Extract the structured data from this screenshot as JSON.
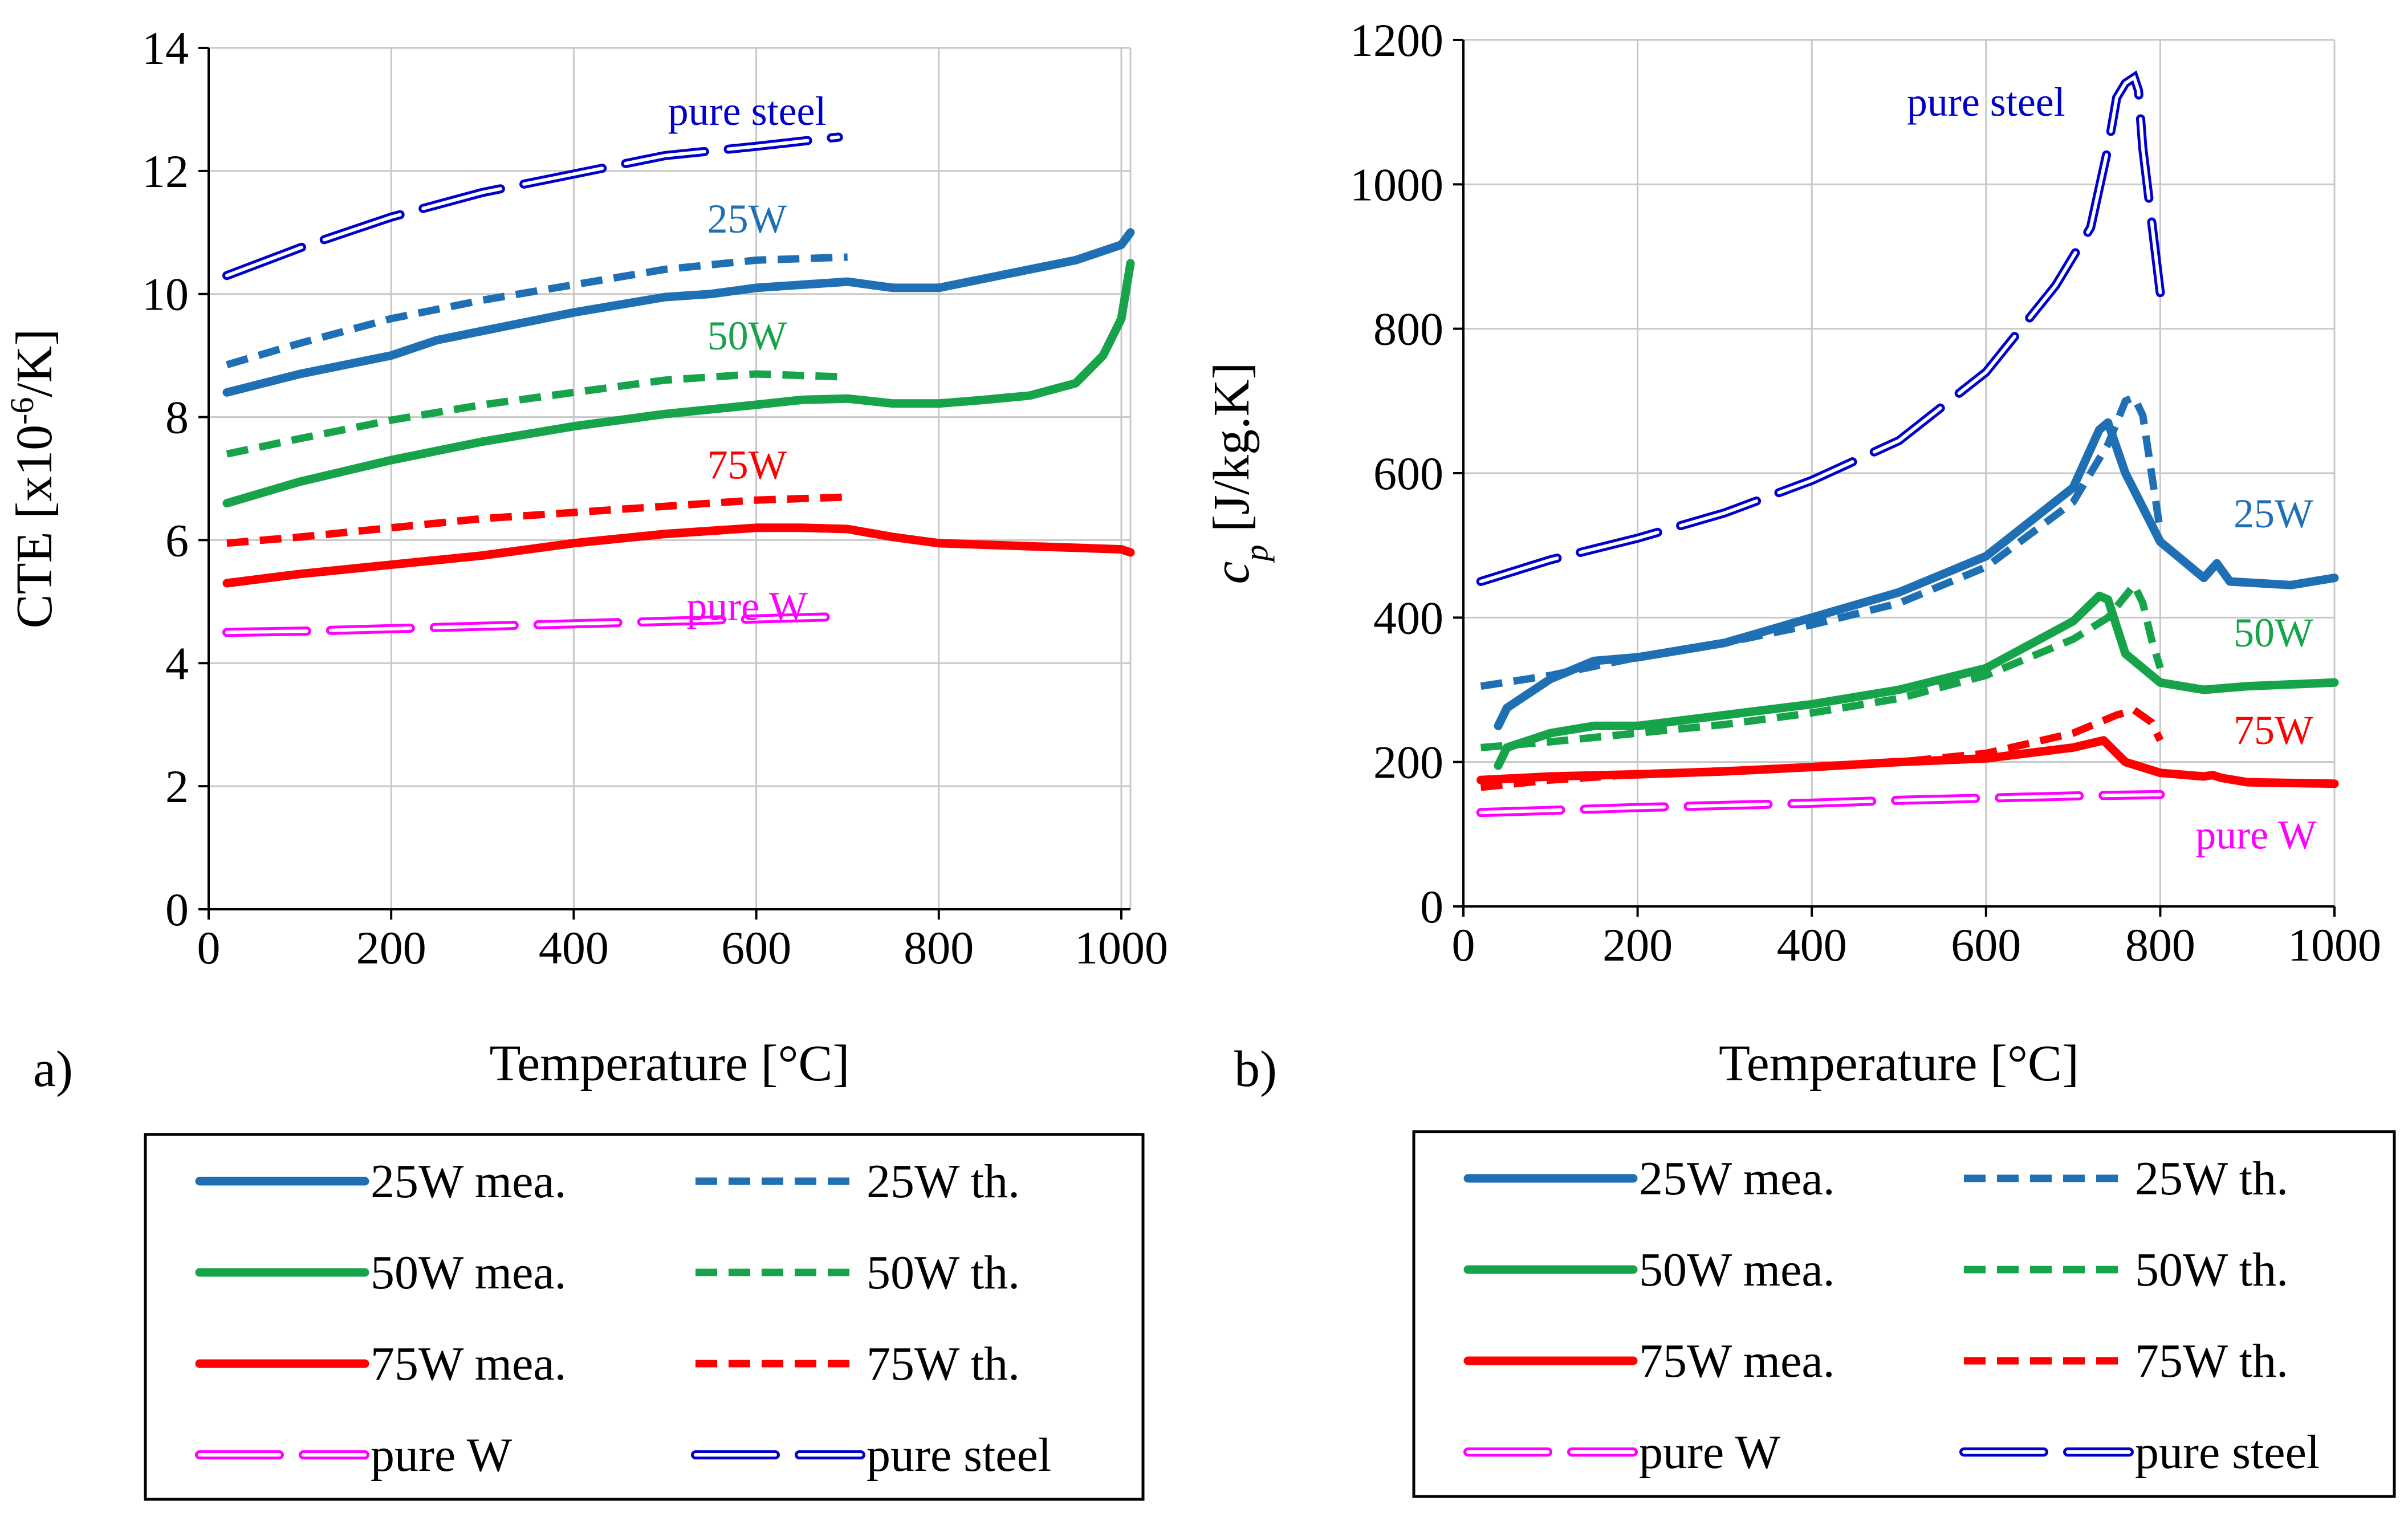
{
  "colors": {
    "w25": "#1f6fb4",
    "w50": "#16a34a",
    "w75": "#ff0000",
    "pureW": "#ff00ff",
    "pureSteel": "#0000cc"
  },
  "chart_data": [
    {
      "id": "a",
      "type": "line",
      "panel_label": "a)",
      "xlabel": "Temperature [°C]",
      "ylabel": "CTE [x10-6/K]",
      "ylabel_parts": {
        "base": "CTE [x10",
        "sup": "-6",
        "tail": "/K]"
      },
      "xlim": [
        0,
        1010
      ],
      "ylim": [
        0,
        14
      ],
      "xticks": [
        0,
        200,
        400,
        600,
        800,
        1000
      ],
      "yticks": [
        0,
        2,
        4,
        6,
        8,
        10,
        12,
        14
      ],
      "grid": true,
      "annotations": [
        {
          "text": "pure steel",
          "x": 590,
          "y": 12.75,
          "series": "pure steel"
        },
        {
          "text": "25W",
          "x": 590,
          "y": 11.0,
          "series": "25W mea."
        },
        {
          "text": "50W",
          "x": 590,
          "y": 9.1,
          "series": "50W mea."
        },
        {
          "text": "75W",
          "x": 590,
          "y": 7.0,
          "series": "75W mea."
        },
        {
          "text": "pure W",
          "x": 590,
          "y": 4.7,
          "series": "pure W"
        }
      ],
      "series": [
        {
          "name": "pure steel",
          "style": "pure-steel",
          "x": [
            20,
            100,
            200,
            300,
            400,
            500,
            600,
            690
          ],
          "y": [
            10.3,
            10.75,
            11.25,
            11.65,
            11.95,
            12.25,
            12.4,
            12.55
          ]
        },
        {
          "name": "25W th.",
          "style": "theory",
          "x": [
            20,
            100,
            200,
            300,
            400,
            500,
            600,
            700
          ],
          "y": [
            8.85,
            9.2,
            9.6,
            9.9,
            10.15,
            10.4,
            10.55,
            10.6
          ]
        },
        {
          "name": "25W mea.",
          "style": "measured",
          "x": [
            20,
            100,
            200,
            250,
            300,
            400,
            500,
            550,
            600,
            650,
            700,
            750,
            800,
            850,
            900,
            950,
            1000,
            1010
          ],
          "y": [
            8.4,
            8.7,
            9.0,
            9.25,
            9.4,
            9.7,
            9.95,
            10.0,
            10.1,
            10.15,
            10.2,
            10.1,
            10.1,
            10.25,
            10.4,
            10.55,
            10.8,
            11.0
          ]
        },
        {
          "name": "50W th.",
          "style": "theory",
          "x": [
            20,
            100,
            200,
            300,
            400,
            500,
            600,
            700
          ],
          "y": [
            7.4,
            7.65,
            7.95,
            8.2,
            8.4,
            8.6,
            8.7,
            8.65
          ]
        },
        {
          "name": "50W mea.",
          "style": "measured",
          "x": [
            20,
            100,
            200,
            250,
            300,
            400,
            500,
            600,
            650,
            700,
            750,
            800,
            850,
            900,
            950,
            980,
            1000,
            1010
          ],
          "y": [
            6.6,
            6.95,
            7.3,
            7.45,
            7.6,
            7.85,
            8.05,
            8.2,
            8.28,
            8.3,
            8.22,
            8.22,
            8.28,
            8.35,
            8.55,
            9.0,
            9.6,
            10.5
          ]
        },
        {
          "name": "75W th.",
          "style": "theory",
          "x": [
            20,
            100,
            200,
            300,
            400,
            500,
            600,
            700
          ],
          "y": [
            5.95,
            6.05,
            6.2,
            6.35,
            6.45,
            6.55,
            6.65,
            6.7
          ]
        },
        {
          "name": "75W mea.",
          "style": "measured",
          "x": [
            20,
            100,
            200,
            300,
            400,
            500,
            600,
            650,
            700,
            750,
            800,
            900,
            1000,
            1010
          ],
          "y": [
            5.3,
            5.45,
            5.6,
            5.75,
            5.95,
            6.1,
            6.2,
            6.2,
            6.18,
            6.05,
            5.95,
            5.9,
            5.85,
            5.8
          ]
        },
        {
          "name": "pure W",
          "style": "pure-w",
          "x": [
            20,
            100,
            200,
            300,
            400,
            500,
            600,
            700
          ],
          "y": [
            4.5,
            4.52,
            4.56,
            4.6,
            4.64,
            4.68,
            4.72,
            4.76
          ]
        }
      ]
    },
    {
      "id": "b",
      "type": "line",
      "panel_label": "b)",
      "xlabel": "Temperature [°C]",
      "ylabel": "cp [J/kg.K]",
      "ylabel_parts": {
        "base": "c",
        "sub": "p",
        "tail": " [J/kg.K]"
      },
      "xlim": [
        0,
        1000
      ],
      "ylim": [
        0,
        1200
      ],
      "xticks": [
        0,
        200,
        400,
        600,
        800,
        1000
      ],
      "yticks": [
        0,
        200,
        400,
        600,
        800,
        1000,
        1200
      ],
      "grid": true,
      "annotations": [
        {
          "text": "pure steel",
          "x": 600,
          "y": 1095,
          "series": "pure steel"
        },
        {
          "text": "25W",
          "x": 930,
          "y": 525,
          "series": "25W mea."
        },
        {
          "text": "50W",
          "x": 930,
          "y": 360,
          "series": "50W mea."
        },
        {
          "text": "75W",
          "x": 930,
          "y": 225,
          "series": "75W mea."
        },
        {
          "text": "pure W",
          "x": 910,
          "y": 80,
          "series": "pure W"
        }
      ],
      "series": [
        {
          "name": "pure steel",
          "style": "pure-steel",
          "x": [
            20,
            100,
            200,
            300,
            400,
            500,
            600,
            680,
            720,
            740,
            750,
            760,
            770,
            775,
            780,
            790,
            800
          ],
          "y": [
            450,
            480,
            510,
            545,
            590,
            645,
            740,
            860,
            940,
            1050,
            1120,
            1140,
            1148,
            1130,
            1050,
            950,
            850
          ]
        },
        {
          "name": "25W th.",
          "style": "theory",
          "x": [
            20,
            100,
            200,
            300,
            400,
            500,
            600,
            700,
            740,
            760,
            770,
            780,
            790,
            800
          ],
          "y": [
            305,
            320,
            345,
            365,
            390,
            420,
            470,
            560,
            640,
            700,
            705,
            680,
            600,
            520
          ]
        },
        {
          "name": "25W mea.",
          "style": "measured",
          "x": [
            40,
            50,
            100,
            150,
            200,
            300,
            400,
            500,
            600,
            700,
            730,
            740,
            760,
            800,
            850,
            865,
            880,
            950,
            1000
          ],
          "y": [
            250,
            275,
            315,
            340,
            345,
            365,
            400,
            435,
            485,
            580,
            660,
            670,
            600,
            505,
            455,
            475,
            450,
            445,
            455
          ]
        },
        {
          "name": "50W th.",
          "style": "theory",
          "x": [
            20,
            100,
            200,
            300,
            400,
            500,
            600,
            700,
            740,
            760,
            770,
            780,
            790,
            800
          ],
          "y": [
            220,
            228,
            240,
            252,
            268,
            288,
            320,
            370,
            400,
            430,
            445,
            420,
            370,
            330
          ]
        },
        {
          "name": "50W mea.",
          "style": "measured",
          "x": [
            40,
            50,
            100,
            150,
            200,
            300,
            400,
            500,
            600,
            700,
            730,
            740,
            760,
            800,
            850,
            900,
            1000
          ],
          "y": [
            195,
            220,
            240,
            250,
            250,
            265,
            280,
            300,
            330,
            395,
            430,
            425,
            350,
            310,
            300,
            305,
            310
          ]
        },
        {
          "name": "75W th.",
          "style": "theory",
          "x": [
            20,
            100,
            200,
            300,
            400,
            500,
            600,
            700,
            750,
            770,
            790,
            800
          ],
          "y": [
            165,
            175,
            183,
            188,
            193,
            200,
            212,
            240,
            265,
            272,
            255,
            230
          ]
        },
        {
          "name": "75W mea.",
          "style": "measured",
          "x": [
            20,
            100,
            200,
            300,
            400,
            500,
            600,
            700,
            735,
            760,
            800,
            850,
            860,
            870,
            900,
            1000
          ],
          "y": [
            175,
            180,
            183,
            187,
            193,
            200,
            205,
            220,
            230,
            200,
            185,
            180,
            182,
            178,
            172,
            170
          ]
        },
        {
          "name": "pure W",
          "style": "pure-w",
          "x": [
            20,
            100,
            200,
            300,
            400,
            500,
            600,
            700,
            800
          ],
          "y": [
            130,
            133,
            137,
            140,
            143,
            147,
            150,
            153,
            155
          ]
        }
      ]
    }
  ],
  "legends": [
    {
      "panel": "a",
      "items": [
        {
          "label": "25W mea.",
          "style": "measured",
          "color": "#1f6fb4"
        },
        {
          "label": "25W th.",
          "style": "theory",
          "color": "#1f6fb4"
        },
        {
          "label": "50W mea.",
          "style": "measured",
          "color": "#16a34a"
        },
        {
          "label": "50W th.",
          "style": "theory",
          "color": "#16a34a"
        },
        {
          "label": "75W mea.",
          "style": "measured",
          "color": "#ff0000"
        },
        {
          "label": "75W th.",
          "style": "theory",
          "color": "#ff0000"
        },
        {
          "label": "pure W",
          "style": "pure-w",
          "color": "#ff00ff"
        },
        {
          "label": "pure steel",
          "style": "pure-steel",
          "color": "#0000cc"
        }
      ]
    },
    {
      "panel": "b",
      "items": [
        {
          "label": "25W mea.",
          "style": "measured",
          "color": "#1f6fb4"
        },
        {
          "label": "25W th.",
          "style": "theory",
          "color": "#1f6fb4"
        },
        {
          "label": "50W mea.",
          "style": "measured",
          "color": "#16a34a"
        },
        {
          "label": "50W th.",
          "style": "theory",
          "color": "#16a34a"
        },
        {
          "label": "75W mea.",
          "style": "measured",
          "color": "#ff0000"
        },
        {
          "label": "75W th.",
          "style": "theory",
          "color": "#ff0000"
        },
        {
          "label": "pure W",
          "style": "pure-w",
          "color": "#ff00ff"
        },
        {
          "label": "pure steel",
          "style": "pure-steel",
          "color": "#0000cc"
        }
      ]
    }
  ]
}
